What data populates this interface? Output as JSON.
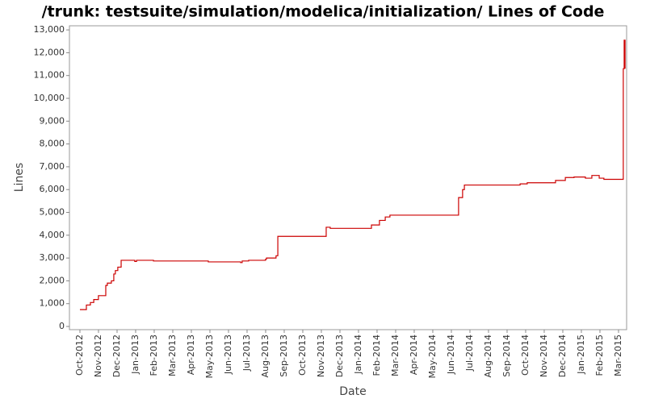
{
  "chart_data": {
    "type": "line",
    "title": "/trunk: testsuite/simulation/modelica/initialization/ Lines of Code",
    "x_label": "Date",
    "y_label": "Lines",
    "step": "post",
    "color": "#cc0000",
    "series": [
      {
        "name": "Lines",
        "color": "#cc0000",
        "x": [
          2012.75,
          2012.779,
          2012.797,
          2012.812,
          2012.833,
          2012.866,
          2012.873,
          2012.891,
          2012.902,
          2012.909,
          2012.92,
          2012.935,
          2012.996,
          2013.004,
          2013.08,
          2013.326,
          2013.471,
          2013.478,
          2013.507,
          2013.583,
          2013.587,
          2013.63,
          2013.638,
          2013.855,
          2013.873,
          2014.058,
          2014.094,
          2014.12,
          2014.141,
          2014.449,
          2014.467,
          2014.475,
          2014.725,
          2014.757,
          2014.884,
          2014.928,
          2014.967,
          2015.018,
          2015.047,
          2015.08,
          2015.101,
          2015.188,
          2015.192,
          2015.196
        ],
        "values": [
          740,
          940,
          1050,
          1180,
          1350,
          1800,
          1900,
          2000,
          2300,
          2450,
          2600,
          2900,
          2850,
          2900,
          2870,
          2830,
          2800,
          2870,
          2900,
          2950,
          3000,
          3100,
          3950,
          4350,
          4300,
          4450,
          4650,
          4800,
          4880,
          5650,
          6000,
          6200,
          6250,
          6300,
          6400,
          6530,
          6550,
          6500,
          6620,
          6500,
          6450,
          11300,
          12550,
          11300
        ]
      }
    ],
    "xlim": [
      2012.703,
      2015.203
    ],
    "xticks": [
      {
        "value": 2012.75,
        "label": "Oct-2012"
      },
      {
        "value": 2012.8333,
        "label": "Nov-2012"
      },
      {
        "value": 2012.9167,
        "label": "Dec-2012"
      },
      {
        "value": 2013.0,
        "label": "Jan-2013"
      },
      {
        "value": 2013.0833,
        "label": "Feb-2013"
      },
      {
        "value": 2013.1667,
        "label": "Mar-2013"
      },
      {
        "value": 2013.25,
        "label": "Apr-2013"
      },
      {
        "value": 2013.3333,
        "label": "May-2013"
      },
      {
        "value": 2013.4167,
        "label": "Jun-2013"
      },
      {
        "value": 2013.5,
        "label": "Jul-2013"
      },
      {
        "value": 2013.5833,
        "label": "Aug-2013"
      },
      {
        "value": 2013.6667,
        "label": "Sep-2013"
      },
      {
        "value": 2013.75,
        "label": "Oct-2013"
      },
      {
        "value": 2013.8333,
        "label": "Nov-2013"
      },
      {
        "value": 2013.9167,
        "label": "Dec-2013"
      },
      {
        "value": 2014.0,
        "label": "Jan-2014"
      },
      {
        "value": 2014.0833,
        "label": "Feb-2014"
      },
      {
        "value": 2014.1667,
        "label": "Mar-2014"
      },
      {
        "value": 2014.25,
        "label": "Apr-2014"
      },
      {
        "value": 2014.3333,
        "label": "May-2014"
      },
      {
        "value": 2014.4167,
        "label": "Jun-2014"
      },
      {
        "value": 2014.5,
        "label": "Jul-2014"
      },
      {
        "value": 2014.5833,
        "label": "Aug-2014"
      },
      {
        "value": 2014.6667,
        "label": "Sep-2014"
      },
      {
        "value": 2014.75,
        "label": "Oct-2014"
      },
      {
        "value": 2014.8333,
        "label": "Nov-2014"
      },
      {
        "value": 2014.9167,
        "label": "Dec-2014"
      },
      {
        "value": 2015.0,
        "label": "Jan-2015"
      },
      {
        "value": 2015.0833,
        "label": "Feb-2015"
      },
      {
        "value": 2015.1667,
        "label": "Mar-2015"
      }
    ],
    "ylim": [
      -140,
      13180
    ],
    "yticks": [
      0,
      {
        "value": 1000,
        "label": "1,000"
      },
      {
        "value": 2000,
        "label": "2,000"
      },
      {
        "value": 3000,
        "label": "3,000"
      },
      {
        "value": 4000,
        "label": "4,000"
      },
      {
        "value": 5000,
        "label": "5,000"
      },
      {
        "value": 6000,
        "label": "6,000"
      },
      {
        "value": 7000,
        "label": "7,000"
      },
      {
        "value": 8000,
        "label": "8,000"
      },
      {
        "value": 9000,
        "label": "9,000"
      },
      {
        "value": 10000,
        "label": "10,000"
      },
      {
        "value": 11000,
        "label": "11,000"
      },
      {
        "value": 12000,
        "label": "12,000"
      },
      {
        "value": 13000,
        "label": "13,000"
      }
    ],
    "grid": false
  }
}
